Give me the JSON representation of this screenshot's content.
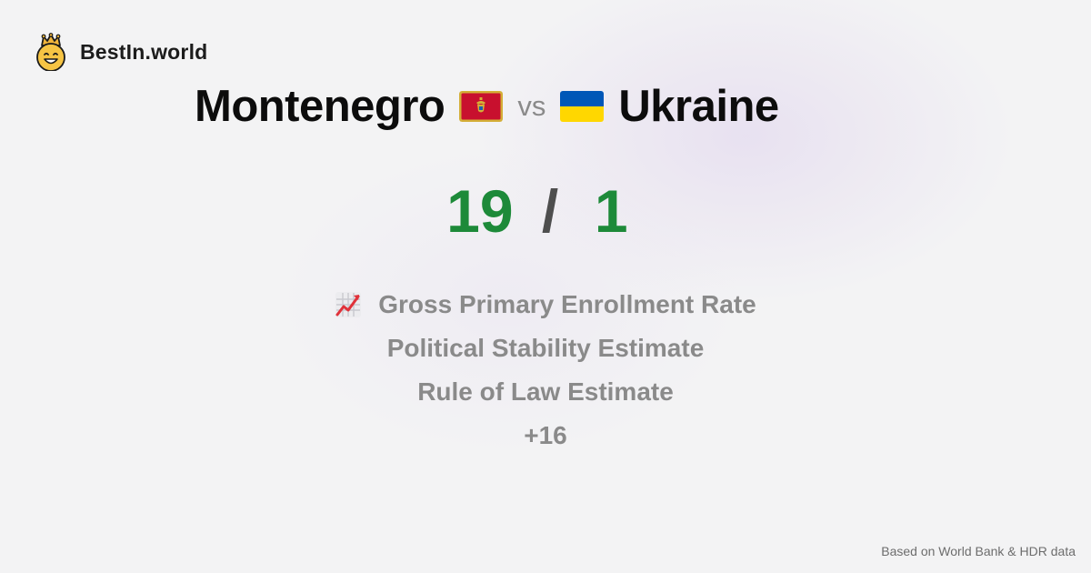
{
  "brand": {
    "name": "BestIn.world",
    "logo_icon": "crowned-smiley-icon"
  },
  "comparison": {
    "left_country": "Montenegro",
    "left_flag": "montenegro-flag-icon",
    "vs_label": "vs",
    "right_country": "Ukraine",
    "right_flag": "ukraine-flag-icon"
  },
  "score": {
    "left": "19",
    "separator": "/",
    "right": "1",
    "color": "#1d8a39"
  },
  "metrics": {
    "icon": "chart-increasing-icon",
    "items": [
      "Gross Primary Enrollment Rate",
      "Political Stability Estimate",
      "Rule of Law Estimate"
    ],
    "more": "+16"
  },
  "footer": {
    "source_note": "Based on World Bank & HDR data"
  }
}
